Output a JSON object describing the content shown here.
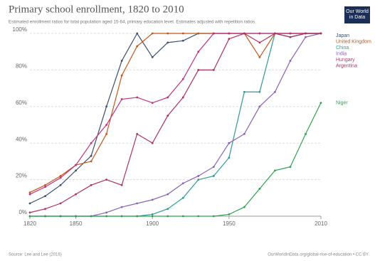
{
  "chart_data": {
    "type": "line",
    "title": "Primary school enrollment, 1820 to 2010",
    "subtitle": "Estimated enrollment ratios for total population aged 15-64, primary education level. Estimates adjusted with repetition ratios.",
    "logo": "Our World in Data",
    "source": "Source: Lee and Lee (2016)",
    "credit": "OurWorldInData.org/global-rise-of-education • CC BY",
    "x": [
      1820,
      1830,
      1840,
      1850,
      1860,
      1870,
      1880,
      1890,
      1900,
      1910,
      1920,
      1930,
      1940,
      1950,
      1960,
      1970,
      1980,
      1990,
      2000,
      2010
    ],
    "xlim": [
      1820,
      2010
    ],
    "xticks": [
      1820,
      1850,
      1900,
      1950,
      2010
    ],
    "ylim": [
      0,
      100
    ],
    "yticks": [
      {
        "value": 0,
        "label": "0%"
      },
      {
        "value": 20,
        "label": "20%"
      },
      {
        "value": 40,
        "label": "40%"
      },
      {
        "value": 60,
        "label": "60%"
      },
      {
        "value": 80,
        "label": "80%"
      },
      {
        "value": 100,
        "label": "100%"
      }
    ],
    "grid": true,
    "series": [
      {
        "name": "Japan",
        "color": "#3d4f6b",
        "values": [
          7,
          11,
          17,
          25,
          33,
          60,
          85,
          100,
          87,
          95,
          96,
          100,
          100,
          100,
          100,
          100,
          100,
          100,
          100,
          100
        ]
      },
      {
        "name": "United Kingdom",
        "color": "#c4561b",
        "values": [
          13,
          17,
          22,
          28,
          30,
          45,
          77,
          93,
          100,
          100,
          100,
          100,
          100,
          100,
          100,
          87,
          100,
          100,
          100,
          100
        ]
      },
      {
        "name": "China",
        "color": "#2f9a95",
        "values": [
          0,
          0,
          0,
          0,
          0,
          0,
          0,
          0,
          1,
          4,
          10,
          20,
          22,
          32,
          68,
          68,
          100,
          98,
          100,
          100
        ]
      },
      {
        "name": "India",
        "color": "#8c62b5",
        "values": [
          0,
          0,
          0,
          0,
          0,
          2,
          5,
          7,
          9,
          12,
          18,
          22,
          27,
          40,
          45,
          60,
          68,
          85,
          98,
          100
        ]
      },
      {
        "name": "Hungary",
        "color": "#c2307e",
        "values": [
          12,
          16,
          21,
          28,
          40,
          50,
          64,
          65,
          62,
          65,
          75,
          90,
          100,
          100,
          100,
          100,
          100,
          100,
          100,
          100
        ]
      },
      {
        "name": "Argentina",
        "color": "#b03060",
        "values": [
          2,
          4,
          7,
          12,
          17,
          20,
          17,
          45,
          40,
          55,
          65,
          80,
          80,
          97,
          100,
          95,
          100,
          98,
          100,
          100
        ]
      },
      {
        "name": "Niger",
        "color": "#2ea34f",
        "values": [
          0,
          0,
          0,
          0,
          0,
          0,
          0,
          0,
          0,
          0,
          0,
          0,
          0,
          1,
          5,
          15,
          25,
          27,
          45,
          62
        ]
      }
    ]
  }
}
